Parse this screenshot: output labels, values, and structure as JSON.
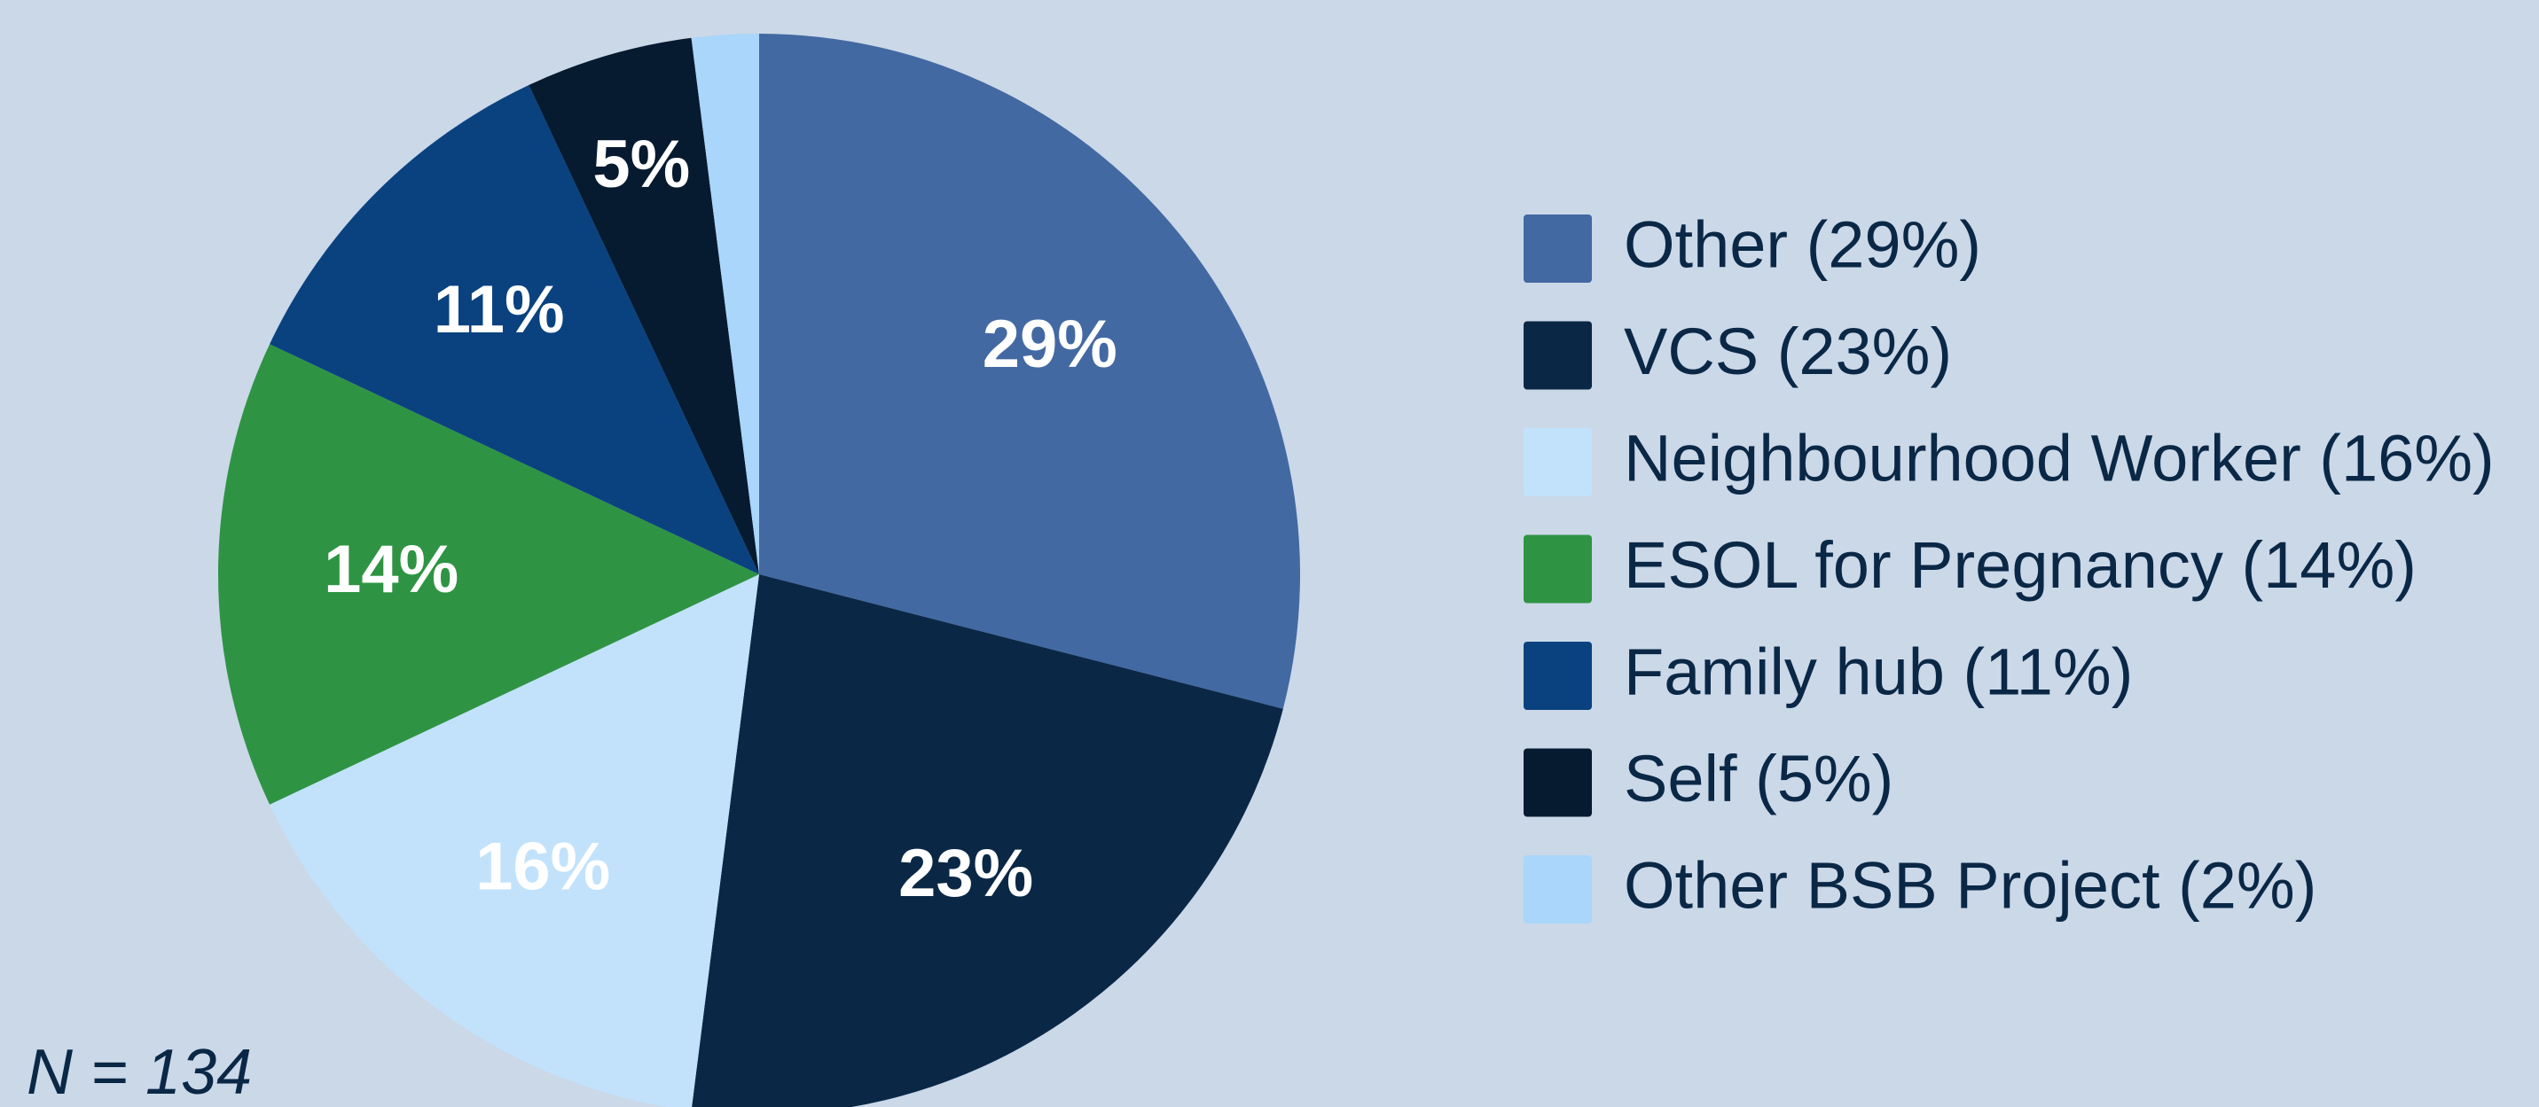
{
  "chart_data": {
    "type": "pie",
    "categories": [
      "Other (29%)",
      "VCS (23%)",
      "Neighbourhood Worker (16%)",
      "ESOL for Pregnancy (14%)",
      "Family hub (11%)",
      "Self (5%)",
      "Other BSB Project (2%)"
    ],
    "values": [
      29,
      23,
      16,
      14,
      11,
      5,
      2
    ],
    "value_labels": [
      "29%",
      "23%",
      "16%",
      "14%",
      "11%",
      "5%",
      null
    ],
    "colors": [
      "#4369a3",
      "#0a2846",
      "#c2e2fb",
      "#2e9443",
      "#0a4280",
      "#061a30",
      "#a9d6fa"
    ],
    "note": "N = 134",
    "legend": "right"
  }
}
